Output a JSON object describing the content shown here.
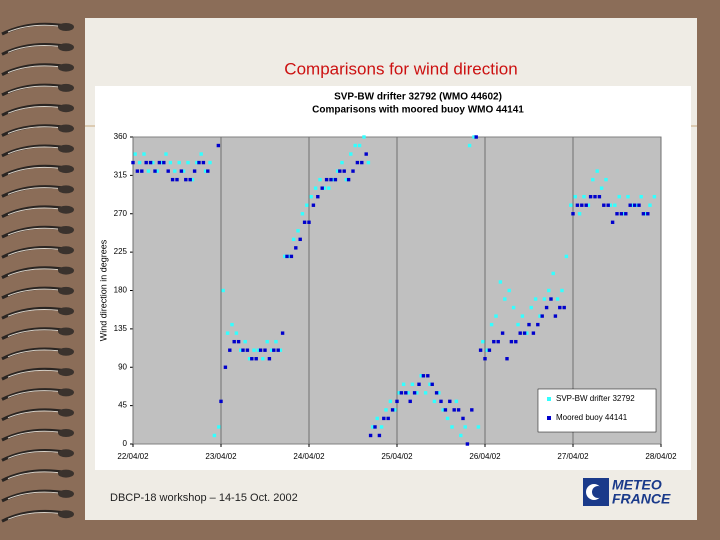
{
  "slide_title": "Comparisons for wind direction",
  "footer": "DBCP-18 workshop – 14-15 Oct. 2002",
  "logo": {
    "line1": "METEO",
    "line2": "FRANCE"
  },
  "chart_data": {
    "type": "scatter",
    "title": "SVP-BW drifter 32792 (WMO 44602)",
    "subtitle": "Comparisons with moored buoy WMO 44141",
    "ylabel": "Wind direction in degrees",
    "xlim": [
      0,
      6
    ],
    "xticks": [
      {
        "value": 0,
        "label": "22/04/02"
      },
      {
        "value": 1,
        "label": "23/04/02"
      },
      {
        "value": 2,
        "label": "24/04/02"
      },
      {
        "value": 3,
        "label": "25/04/02"
      },
      {
        "value": 4,
        "label": "26/04/02"
      },
      {
        "value": 5,
        "label": "27/04/02"
      },
      {
        "value": 6,
        "label": "28/04/02"
      }
    ],
    "ylim": [
      0,
      360
    ],
    "yticks": [
      0,
      45,
      90,
      135,
      180,
      225,
      270,
      315,
      360
    ],
    "xgrid": true,
    "ygrid": false,
    "plot_background": "#c0c0c0",
    "legend": "lower right",
    "series": [
      {
        "name": "SVP-BW drifter 32792",
        "color": "#33ffff",
        "x": [
          0.025,
          0.075,
          0.125,
          0.175,
          0.225,
          0.275,
          0.325,
          0.375,
          0.425,
          0.475,
          0.525,
          0.575,
          0.625,
          0.675,
          0.725,
          0.775,
          0.825,
          0.875,
          0.925,
          0.975,
          1.025,
          1.075,
          1.125,
          1.175,
          1.225,
          1.275,
          1.325,
          1.375,
          1.425,
          1.475,
          1.525,
          1.575,
          1.625,
          1.675,
          1.725,
          1.775,
          1.825,
          1.875,
          1.925,
          1.975,
          2.025,
          2.075,
          2.125,
          2.175,
          2.225,
          2.275,
          2.325,
          2.375,
          2.425,
          2.475,
          2.525,
          2.575,
          2.625,
          2.675,
          2.725,
          2.775,
          2.825,
          2.875,
          2.925,
          2.975,
          3.025,
          3.075,
          3.125,
          3.175,
          3.225,
          3.275,
          3.325,
          3.375,
          3.425,
          3.475,
          3.525,
          3.575,
          3.625,
          3.675,
          3.725,
          3.775,
          3.825,
          3.875,
          3.925,
          3.975,
          4.025,
          4.075,
          4.125,
          4.175,
          4.225,
          4.275,
          4.325,
          4.375,
          4.425,
          4.475,
          4.525,
          4.575,
          4.625,
          4.675,
          4.725,
          4.775,
          4.825,
          4.875,
          4.925,
          4.975,
          5.025,
          5.075,
          5.125,
          5.175,
          5.225,
          5.275,
          5.325,
          5.375,
          5.425,
          5.475,
          5.525,
          5.575,
          5.625,
          5.675,
          5.725,
          5.775,
          5.825,
          5.875,
          5.925
        ],
        "values": [
          340,
          330,
          340,
          320,
          330,
          320,
          330,
          340,
          330,
          320,
          330,
          320,
          330,
          310,
          330,
          340,
          320,
          330,
          10,
          20,
          180,
          130,
          140,
          130,
          110,
          120,
          100,
          110,
          110,
          100,
          120,
          110,
          120,
          110,
          220,
          220,
          240,
          250,
          270,
          280,
          290,
          300,
          310,
          300,
          300,
          310,
          320,
          330,
          310,
          340,
          350,
          350,
          360,
          330,
          20,
          30,
          20,
          40,
          50,
          40,
          60,
          70,
          60,
          70,
          60,
          80,
          60,
          70,
          50,
          60,
          40,
          30,
          20,
          50,
          10,
          20,
          350,
          360,
          20,
          120,
          110,
          140,
          150,
          190,
          170,
          180,
          160,
          140,
          150,
          130,
          160,
          170,
          150,
          170,
          180,
          200,
          170,
          180,
          220,
          280,
          290,
          270,
          290,
          280,
          310,
          320,
          300,
          310,
          280,
          280,
          290,
          270,
          290,
          280,
          280,
          290,
          270,
          280,
          290
        ]
      },
      {
        "name": "Moored buoy 44141",
        "color": "#0000cc",
        "x": [
          0,
          0.05,
          0.1,
          0.15,
          0.2,
          0.25,
          0.3,
          0.35,
          0.4,
          0.45,
          0.5,
          0.55,
          0.6,
          0.65,
          0.7,
          0.75,
          0.8,
          0.85,
          0.97,
          1,
          1.05,
          1.1,
          1.15,
          1.2,
          1.25,
          1.3,
          1.35,
          1.4,
          1.45,
          1.5,
          1.55,
          1.6,
          1.65,
          1.7,
          1.75,
          1.8,
          1.85,
          1.9,
          1.95,
          2,
          2.05,
          2.1,
          2.15,
          2.2,
          2.25,
          2.3,
          2.35,
          2.4,
          2.45,
          2.5,
          2.55,
          2.6,
          2.65,
          2.7,
          2.75,
          2.8,
          2.85,
          2.9,
          2.95,
          3,
          3.05,
          3.1,
          3.15,
          3.2,
          3.25,
          3.3,
          3.35,
          3.4,
          3.45,
          3.5,
          3.55,
          3.6,
          3.65,
          3.7,
          3.75,
          3.8,
          3.85,
          3.9,
          3.95,
          4,
          4.05,
          4.1,
          4.15,
          4.2,
          4.25,
          4.3,
          4.35,
          4.4,
          4.45,
          4.5,
          4.55,
          4.6,
          4.65,
          4.7,
          4.75,
          4.8,
          4.85,
          4.9,
          5,
          5.05,
          5.1,
          5.15,
          5.2,
          5.25,
          5.3,
          5.35,
          5.4,
          5.45,
          5.5,
          5.55,
          5.6,
          5.65,
          5.7,
          5.75,
          5.8,
          5.85
        ],
        "values": [
          330,
          320,
          320,
          330,
          330,
          320,
          330,
          330,
          320,
          310,
          310,
          320,
          310,
          310,
          320,
          330,
          330,
          320,
          350,
          50,
          90,
          110,
          120,
          120,
          110,
          110,
          100,
          100,
          110,
          110,
          100,
          110,
          110,
          130,
          220,
          220,
          230,
          240,
          260,
          260,
          280,
          290,
          300,
          310,
          310,
          310,
          320,
          320,
          310,
          320,
          330,
          330,
          340,
          10,
          20,
          10,
          30,
          30,
          40,
          50,
          60,
          60,
          50,
          60,
          70,
          80,
          80,
          70,
          60,
          50,
          40,
          50,
          40,
          40,
          30,
          0,
          40,
          360,
          110,
          100,
          110,
          120,
          120,
          130,
          100,
          120,
          120,
          130,
          130,
          140,
          130,
          140,
          150,
          160,
          170,
          150,
          160,
          160,
          270,
          280,
          280,
          280,
          290,
          290,
          290,
          280,
          280,
          260,
          270,
          270,
          270,
          280,
          280,
          280,
          270,
          270
        ]
      }
    ]
  }
}
